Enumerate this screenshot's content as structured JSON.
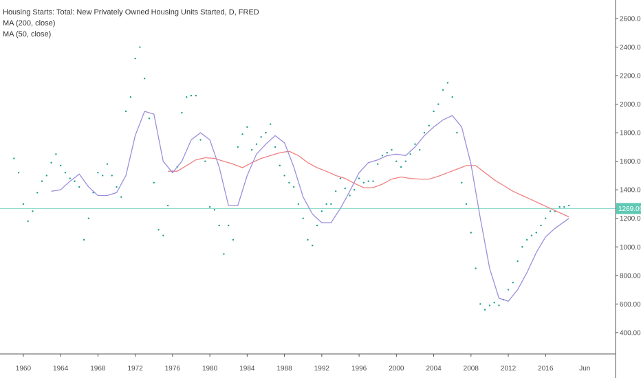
{
  "legend": {
    "title": "Housing Starts: Total: New Privately Owned Housing Units Started, D, FRED",
    "ma200": "MA (200, close)",
    "ma50": "MA (50, close)"
  },
  "colors": {
    "points": "#1a9e8f",
    "ma200": "#f08080",
    "ma50": "#9a8fdc",
    "price_line": "#7fd6c8",
    "price_label_bg": "#5fc9b4",
    "axis": "#555555",
    "grid": "#e9e9e9"
  },
  "price_label": "1269.00",
  "chart_data": {
    "type": "scatter",
    "title": "Housing Starts: Total: New Privately Owned Housing Units Started, D, FRED",
    "xlabel": "",
    "ylabel": "",
    "xlim": [
      1957.5,
      2023.5
    ],
    "ylim": [
      250,
      2730
    ],
    "grid": false,
    "legend_position": "top-left",
    "x_ticks": [
      1960,
      1964,
      1968,
      1972,
      1976,
      1980,
      1984,
      1988,
      1992,
      1996,
      2000,
      2004,
      2008,
      2012,
      2016
    ],
    "x_tick_labels": [
      "1960",
      "1964",
      "1968",
      "1972",
      "1976",
      "1980",
      "1984",
      "1988",
      "1992",
      "1996",
      "2000",
      "2004",
      "2008",
      "2012",
      "2016"
    ],
    "extra_x_label": {
      "x": 2020.2,
      "label": "Jun"
    },
    "y_ticks": [
      400,
      600,
      800,
      1000,
      1200,
      1400,
      1600,
      1800,
      2000,
      2200,
      2400,
      2600
    ],
    "y_tick_labels": [
      "400.00",
      "600.00",
      "800.00",
      "1000.00",
      "1200.00",
      "1400.00",
      "1600.00",
      "1800.00",
      "2000.00",
      "2200.00",
      "2400.00",
      "2600.00"
    ],
    "current_value": 1269,
    "series": [
      {
        "kind": "points",
        "x": [
          1959.0,
          1959.5,
          1960.0,
          1960.5,
          1961.0,
          1961.5,
          1962.0,
          1962.5,
          1963.0,
          1963.5,
          1964.0,
          1964.5,
          1965.0,
          1965.5,
          1966.0,
          1966.5,
          1967.0,
          1967.5,
          1968.0,
          1968.5,
          1969.0,
          1969.5,
          1970.0,
          1970.5,
          1971.0,
          1971.5,
          1972.0,
          1972.5,
          1973.0,
          1973.5,
          1974.0,
          1974.5,
          1975.0,
          1975.5,
          1976.0,
          1976.5,
          1977.0,
          1977.5,
          1978.0,
          1978.5,
          1979.0,
          1979.5,
          1980.0,
          1980.5,
          1981.0,
          1981.5,
          1982.0,
          1982.5,
          1983.0,
          1983.5,
          1984.0,
          1984.5,
          1985.0,
          1985.5,
          1986.0,
          1986.5,
          1987.0,
          1987.5,
          1988.0,
          1988.5,
          1989.0,
          1989.5,
          1990.0,
          1990.5,
          1991.0,
          1991.5,
          1992.0,
          1992.5,
          1993.0,
          1993.5,
          1994.0,
          1994.5,
          1995.0,
          1995.5,
          1996.0,
          1996.5,
          1997.0,
          1997.5,
          1998.0,
          1998.5,
          1999.0,
          1999.5,
          2000.0,
          2000.5,
          2001.0,
          2001.5,
          2002.0,
          2002.5,
          2003.0,
          2003.5,
          2004.0,
          2004.5,
          2005.0,
          2005.5,
          2006.0,
          2006.5,
          2007.0,
          2007.5,
          2008.0,
          2008.5,
          2009.0,
          2009.5,
          2010.0,
          2010.5,
          2011.0,
          2011.5,
          2012.0,
          2012.5,
          2013.0,
          2013.5,
          2014.0,
          2014.5,
          2015.0,
          2015.5,
          2016.0,
          2016.5,
          2017.0,
          2017.5,
          2018.0,
          2018.5
        ],
        "y": [
          1620,
          1520,
          1300,
          1180,
          1250,
          1380,
          1460,
          1500,
          1590,
          1650,
          1570,
          1520,
          1480,
          1460,
          1420,
          1050,
          1200,
          1380,
          1520,
          1500,
          1580,
          1500,
          1420,
          1350,
          1950,
          2050,
          2320,
          2400,
          2180,
          1900,
          1450,
          1120,
          1080,
          1290,
          1530,
          1560,
          1940,
          2050,
          2060,
          2060,
          1750,
          1600,
          1280,
          1260,
          1150,
          950,
          1150,
          1050,
          1700,
          1790,
          1840,
          1680,
          1720,
          1770,
          1800,
          1860,
          1700,
          1570,
          1500,
          1450,
          1420,
          1300,
          1200,
          1050,
          1010,
          1150,
          1250,
          1300,
          1300,
          1390,
          1480,
          1410,
          1360,
          1400,
          1480,
          1450,
          1460,
          1460,
          1580,
          1640,
          1660,
          1680,
          1600,
          1560,
          1600,
          1650,
          1720,
          1680,
          1800,
          1850,
          1950,
          2000,
          2100,
          2150,
          2050,
          1800,
          1450,
          1300,
          1100,
          850,
          600,
          560,
          590,
          610,
          590,
          630,
          700,
          750,
          900,
          1000,
          1050,
          1080,
          1100,
          1150,
          1200,
          1250,
          1250,
          1280,
          1280,
          1290
        ]
      },
      {
        "kind": "line",
        "name": "MA (200, close)",
        "x": [
          1975.5,
          1976.5,
          1977.5,
          1978.5,
          1979.5,
          1980.5,
          1981.5,
          1982.5,
          1983.5,
          1984.5,
          1985.5,
          1986.5,
          1987.5,
          1988.5,
          1989.5,
          1990.5,
          1991.5,
          1992.5,
          1993.5,
          1994.5,
          1995.5,
          1996.5,
          1997.5,
          1998.5,
          1999.5,
          2000.5,
          2001.5,
          2002.5,
          2003.5,
          2004.5,
          2005.5,
          2006.5,
          2007.5,
          2008.5,
          2009.5,
          2010.5,
          2011.5,
          2012.5,
          2013.5,
          2014.5,
          2015.5,
          2016.5,
          2017.5,
          2018.5
        ],
        "y": [
          1530,
          1530,
          1570,
          1610,
          1625,
          1620,
          1600,
          1580,
          1555,
          1590,
          1620,
          1640,
          1660,
          1670,
          1640,
          1590,
          1555,
          1530,
          1500,
          1480,
          1445,
          1415,
          1415,
          1440,
          1475,
          1490,
          1480,
          1475,
          1475,
          1495,
          1520,
          1545,
          1570,
          1570,
          1520,
          1470,
          1430,
          1390,
          1360,
          1330,
          1300,
          1270,
          1240,
          1210
        ]
      },
      {
        "kind": "line",
        "name": "MA (50, close)",
        "x": [
          1963.0,
          1964.0,
          1965.0,
          1966.0,
          1967.0,
          1968.0,
          1969.0,
          1970.0,
          1971.0,
          1972.0,
          1973.0,
          1974.0,
          1975.0,
          1976.0,
          1977.0,
          1978.0,
          1979.0,
          1980.0,
          1981.0,
          1982.0,
          1983.0,
          1984.0,
          1985.0,
          1986.0,
          1987.0,
          1988.0,
          1989.0,
          1990.0,
          1991.0,
          1992.0,
          1993.0,
          1994.0,
          1995.0,
          1996.0,
          1997.0,
          1998.0,
          1999.0,
          2000.0,
          2001.0,
          2002.0,
          2003.0,
          2004.0,
          2005.0,
          2006.0,
          2007.0,
          2008.0,
          2009.0,
          2010.0,
          2011.0,
          2012.0,
          2013.0,
          2014.0,
          2015.0,
          2016.0,
          2017.0,
          2018.5
        ],
        "y": [
          1390,
          1400,
          1460,
          1510,
          1420,
          1360,
          1360,
          1380,
          1500,
          1780,
          1950,
          1930,
          1600,
          1520,
          1600,
          1750,
          1800,
          1750,
          1560,
          1290,
          1290,
          1500,
          1650,
          1720,
          1780,
          1730,
          1560,
          1350,
          1230,
          1170,
          1170,
          1270,
          1390,
          1520,
          1590,
          1610,
          1640,
          1650,
          1640,
          1700,
          1780,
          1840,
          1890,
          1920,
          1840,
          1580,
          1200,
          850,
          640,
          620,
          700,
          820,
          960,
          1070,
          1130,
          1200
        ]
      }
    ]
  }
}
